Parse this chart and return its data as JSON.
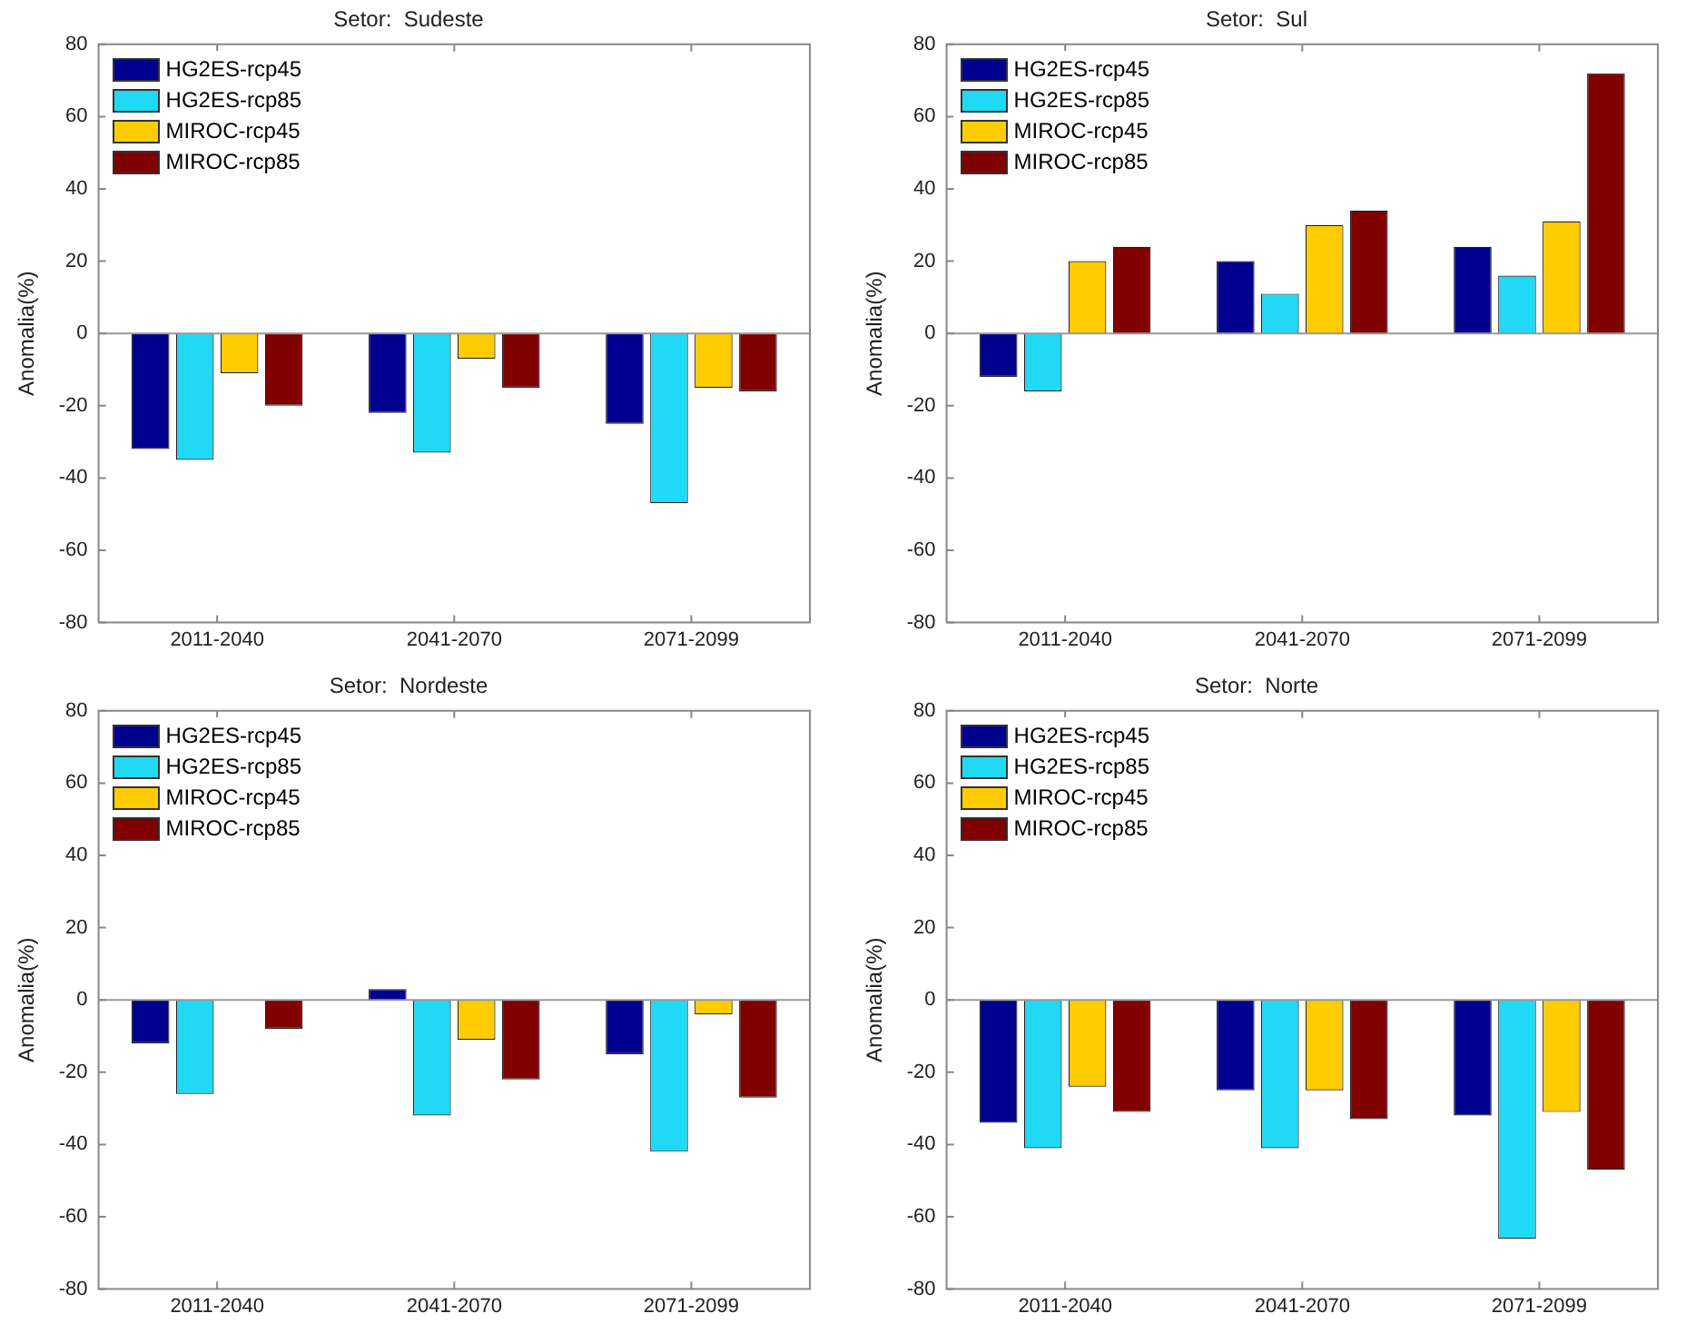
{
  "chart_data": [
    {
      "type": "bar",
      "title": "Setor:  Sudeste",
      "ylabel": "Anomalia(%)",
      "categories": [
        "2011-2040",
        "2041-2070",
        "2071-2099"
      ],
      "ylim": [
        -80,
        80
      ],
      "yticks": [
        -80,
        -60,
        -40,
        -20,
        0,
        20,
        40,
        60,
        80
      ],
      "legend": "top left",
      "series": [
        {
          "name": "HG2ES-rcp45",
          "color": "#00008f",
          "values": [
            -32,
            -22,
            -25
          ]
        },
        {
          "name": "HG2ES-rcp85",
          "color": "#1fd9f5",
          "values": [
            -35,
            -33,
            -47
          ]
        },
        {
          "name": "MIROC-rcp45",
          "color": "#ffcc00",
          "values": [
            -11,
            -7,
            -15
          ]
        },
        {
          "name": "MIROC-rcp85",
          "color": "#800000",
          "values": [
            -20,
            -15,
            -16
          ]
        }
      ]
    },
    {
      "type": "bar",
      "title": "Setor:  Sul",
      "ylabel": "Anomalia(%)",
      "categories": [
        "2011-2040",
        "2041-2070",
        "2071-2099"
      ],
      "ylim": [
        -80,
        80
      ],
      "yticks": [
        -80,
        -60,
        -40,
        -20,
        0,
        20,
        40,
        60,
        80
      ],
      "legend": "top left",
      "series": [
        {
          "name": "HG2ES-rcp45",
          "color": "#00008f",
          "values": [
            -12,
            20,
            24
          ]
        },
        {
          "name": "HG2ES-rcp85",
          "color": "#1fd9f5",
          "values": [
            -16,
            11,
            16
          ]
        },
        {
          "name": "MIROC-rcp45",
          "color": "#ffcc00",
          "values": [
            20,
            30,
            31
          ]
        },
        {
          "name": "MIROC-rcp85",
          "color": "#800000",
          "values": [
            24,
            34,
            72
          ]
        }
      ]
    },
    {
      "type": "bar",
      "title": "Setor:  Nordeste",
      "ylabel": "Anomalia(%)",
      "categories": [
        "2011-2040",
        "2041-2070",
        "2071-2099"
      ],
      "ylim": [
        -80,
        80
      ],
      "yticks": [
        -80,
        -60,
        -40,
        -20,
        0,
        20,
        40,
        60,
        80
      ],
      "legend": "top left",
      "series": [
        {
          "name": "HG2ES-rcp45",
          "color": "#00008f",
          "values": [
            -12,
            3,
            -15
          ]
        },
        {
          "name": "HG2ES-rcp85",
          "color": "#1fd9f5",
          "values": [
            -26,
            -32,
            -42
          ]
        },
        {
          "name": "MIROC-rcp45",
          "color": "#ffcc00",
          "values": [
            0,
            -11,
            -4
          ]
        },
        {
          "name": "MIROC-rcp85",
          "color": "#800000",
          "values": [
            -8,
            -22,
            -27
          ]
        }
      ]
    },
    {
      "type": "bar",
      "title": "Setor:  Norte",
      "ylabel": "Anomalia(%)",
      "categories": [
        "2011-2040",
        "2041-2070",
        "2071-2099"
      ],
      "ylim": [
        -80,
        80
      ],
      "yticks": [
        -80,
        -60,
        -40,
        -20,
        0,
        20,
        40,
        60,
        80
      ],
      "legend": "top left",
      "series": [
        {
          "name": "HG2ES-rcp45",
          "color": "#00008f",
          "values": [
            -34,
            -25,
            -32
          ]
        },
        {
          "name": "HG2ES-rcp85",
          "color": "#1fd9f5",
          "values": [
            -41,
            -41,
            -66
          ]
        },
        {
          "name": "MIROC-rcp45",
          "color": "#ffcc00",
          "values": [
            -24,
            -25,
            -31
          ]
        },
        {
          "name": "MIROC-rcp85",
          "color": "#800000",
          "values": [
            -31,
            -33,
            -47
          ]
        }
      ]
    }
  ]
}
